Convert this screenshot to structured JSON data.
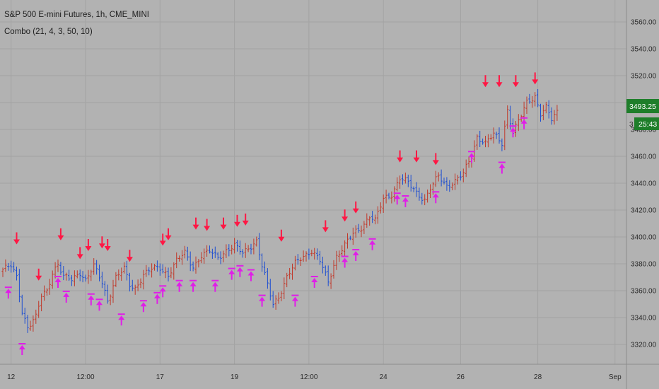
{
  "header": {
    "symbol_title": "S&P 500 E-mini Futures, 1h, CME_MINI",
    "indicator_title": "Combo (21, 4, 3, 50, 10)"
  },
  "price_badge": {
    "price": "3493.25",
    "countdown": "25:43",
    "partial_text": "3"
  },
  "colors": {
    "background": "#b2b2b2",
    "grid": "#a3a3a3",
    "bull_bar": "#c0392b",
    "bear_bar": "#1f4fd1",
    "sell_signal": "#ff1744",
    "buy_signal": "#e01ee8",
    "badge": "#1e7e2a",
    "axis_text": "#2a2a2a"
  },
  "chart_data": {
    "type": "ohlc",
    "ylim": [
      3306,
      3572
    ],
    "y_ticks": [
      3320,
      3340,
      3360,
      3380,
      3400,
      3420,
      3440,
      3460,
      3480,
      3500,
      3520,
      3540,
      3560
    ],
    "y_tick_labels": [
      "3320.00",
      "3340.00",
      "3360.00",
      "3380.00",
      "3400.00",
      "3420.00",
      "3440.00",
      "3460.00",
      "3480.00",
      "3500.00",
      "3520.00",
      "3540.00",
      "3560.00"
    ],
    "x_ticks": [
      {
        "label": "12",
        "at": 3
      },
      {
        "label": "12:00",
        "at": 30
      },
      {
        "label": "17",
        "at": 57
      },
      {
        "label": "19",
        "at": 84
      },
      {
        "label": "12:00",
        "at": 111
      },
      {
        "label": "24",
        "at": 138
      },
      {
        "label": "26",
        "at": 166
      },
      {
        "label": "28",
        "at": 194
      },
      {
        "label": "Sep",
        "at": 222
      }
    ],
    "path_anchors": [
      [
        0,
        3376
      ],
      [
        3,
        3378
      ],
      [
        5,
        3370
      ],
      [
        7,
        3345
      ],
      [
        9,
        3333
      ],
      [
        12,
        3340
      ],
      [
        14,
        3356
      ],
      [
        16,
        3360
      ],
      [
        18,
        3374
      ],
      [
        20,
        3380
      ],
      [
        22,
        3370
      ],
      [
        25,
        3368
      ],
      [
        28,
        3374
      ],
      [
        30,
        3368
      ],
      [
        33,
        3378
      ],
      [
        36,
        3366
      ],
      [
        38,
        3353
      ],
      [
        41,
        3370
      ],
      [
        44,
        3376
      ],
      [
        46,
        3364
      ],
      [
        48,
        3362
      ],
      [
        51,
        3372
      ],
      [
        54,
        3376
      ],
      [
        57,
        3377
      ],
      [
        60,
        3372
      ],
      [
        63,
        3382
      ],
      [
        66,
        3388
      ],
      [
        69,
        3378
      ],
      [
        72,
        3386
      ],
      [
        75,
        3389
      ],
      [
        78,
        3385
      ],
      [
        81,
        3390
      ],
      [
        84,
        3393
      ],
      [
        87,
        3388
      ],
      [
        89,
        3392
      ],
      [
        92,
        3397
      ],
      [
        94,
        3378
      ],
      [
        96,
        3364
      ],
      [
        98,
        3350
      ],
      [
        100,
        3356
      ],
      [
        103,
        3370
      ],
      [
        106,
        3380
      ],
      [
        109,
        3386
      ],
      [
        112,
        3390
      ],
      [
        115,
        3382
      ],
      [
        118,
        3366
      ],
      [
        121,
        3386
      ],
      [
        124,
        3394
      ],
      [
        127,
        3402
      ],
      [
        130,
        3407
      ],
      [
        133,
        3416
      ],
      [
        135,
        3412
      ],
      [
        138,
        3428
      ],
      [
        141,
        3432
      ],
      [
        144,
        3444
      ],
      [
        147,
        3440
      ],
      [
        150,
        3433
      ],
      [
        153,
        3428
      ],
      [
        155,
        3436
      ],
      [
        158,
        3445
      ],
      [
        161,
        3438
      ],
      [
        164,
        3442
      ],
      [
        167,
        3447
      ],
      [
        170,
        3460
      ],
      [
        172,
        3475
      ],
      [
        175,
        3470
      ],
      [
        178,
        3476
      ],
      [
        181,
        3470
      ],
      [
        183,
        3495
      ],
      [
        185,
        3478
      ],
      [
        188,
        3490
      ],
      [
        190,
        3500
      ],
      [
        193,
        3505
      ],
      [
        195,
        3492
      ],
      [
        197,
        3496
      ],
      [
        199,
        3487
      ],
      [
        201,
        3493
      ]
    ],
    "sell_signals": [
      {
        "i": 5,
        "price": 3395
      },
      {
        "i": 13,
        "price": 3368
      },
      {
        "i": 21,
        "price": 3398
      },
      {
        "i": 28,
        "price": 3384
      },
      {
        "i": 31,
        "price": 3390
      },
      {
        "i": 36,
        "price": 3392
      },
      {
        "i": 38,
        "price": 3390
      },
      {
        "i": 46,
        "price": 3382
      },
      {
        "i": 58,
        "price": 3394
      },
      {
        "i": 60,
        "price": 3398
      },
      {
        "i": 70,
        "price": 3406
      },
      {
        "i": 74,
        "price": 3405
      },
      {
        "i": 80,
        "price": 3406
      },
      {
        "i": 85,
        "price": 3408
      },
      {
        "i": 88,
        "price": 3409
      },
      {
        "i": 101,
        "price": 3397
      },
      {
        "i": 117,
        "price": 3404
      },
      {
        "i": 124,
        "price": 3412
      },
      {
        "i": 128,
        "price": 3418
      },
      {
        "i": 144,
        "price": 3456
      },
      {
        "i": 150,
        "price": 3456
      },
      {
        "i": 157,
        "price": 3454
      },
      {
        "i": 175,
        "price": 3512
      },
      {
        "i": 180,
        "price": 3512
      },
      {
        "i": 186,
        "price": 3512
      },
      {
        "i": 193,
        "price": 3514
      }
    ],
    "buy_signals": [
      {
        "i": 2,
        "price": 3362
      },
      {
        "i": 7,
        "price": 3320
      },
      {
        "i": 20,
        "price": 3370
      },
      {
        "i": 23,
        "price": 3359
      },
      {
        "i": 32,
        "price": 3357
      },
      {
        "i": 35,
        "price": 3353
      },
      {
        "i": 43,
        "price": 3342
      },
      {
        "i": 51,
        "price": 3352
      },
      {
        "i": 56,
        "price": 3358
      },
      {
        "i": 58,
        "price": 3363
      },
      {
        "i": 64,
        "price": 3367
      },
      {
        "i": 69,
        "price": 3367
      },
      {
        "i": 77,
        "price": 3367
      },
      {
        "i": 83,
        "price": 3376
      },
      {
        "i": 86,
        "price": 3378
      },
      {
        "i": 90,
        "price": 3375
      },
      {
        "i": 94,
        "price": 3356
      },
      {
        "i": 106,
        "price": 3356
      },
      {
        "i": 113,
        "price": 3370
      },
      {
        "i": 124,
        "price": 3385
      },
      {
        "i": 128,
        "price": 3390
      },
      {
        "i": 134,
        "price": 3398
      },
      {
        "i": 143,
        "price": 3432
      },
      {
        "i": 146,
        "price": 3430
      },
      {
        "i": 157,
        "price": 3433
      },
      {
        "i": 170,
        "price": 3463
      },
      {
        "i": 181,
        "price": 3455
      },
      {
        "i": 185,
        "price": 3482
      },
      {
        "i": 189,
        "price": 3488
      }
    ]
  }
}
